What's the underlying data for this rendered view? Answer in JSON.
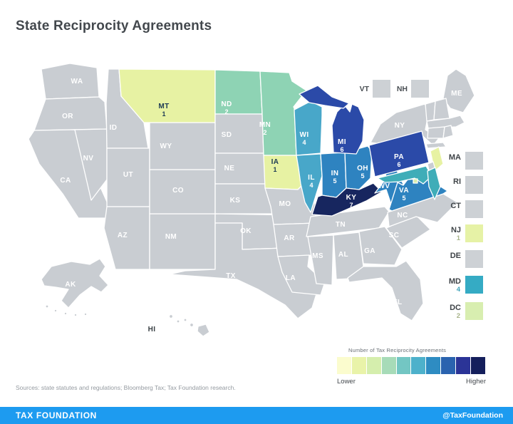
{
  "title": "State Reciprocity Agreements",
  "colors": {
    "gray_state": "#c9cdd2",
    "footer_bg": "#1d9bf0",
    "dark_label": "#1c3a54",
    "white_label": "#ffffff"
  },
  "map": {
    "states": [
      {
        "id": "WA",
        "label": "WA",
        "value": "",
        "fill": "#c9cdd2"
      },
      {
        "id": "OR",
        "label": "OR",
        "value": "",
        "fill": "#c9cdd2"
      },
      {
        "id": "CA",
        "label": "CA",
        "value": "",
        "fill": "#c9cdd2"
      },
      {
        "id": "NV",
        "label": "NV",
        "value": "",
        "fill": "#c9cdd2"
      },
      {
        "id": "ID",
        "label": "ID",
        "value": "",
        "fill": "#c9cdd2"
      },
      {
        "id": "UT",
        "label": "UT",
        "value": "",
        "fill": "#c9cdd2"
      },
      {
        "id": "AZ",
        "label": "AZ",
        "value": "",
        "fill": "#c9cdd2"
      },
      {
        "id": "NM",
        "label": "NM",
        "value": "",
        "fill": "#c9cdd2"
      },
      {
        "id": "CO",
        "label": "CO",
        "value": "",
        "fill": "#c9cdd2"
      },
      {
        "id": "WY",
        "label": "WY",
        "value": "",
        "fill": "#c9cdd2"
      },
      {
        "id": "MT",
        "label": "MT",
        "value": "1",
        "fill": "#e7f2a3",
        "label_color": "#1c3a54"
      },
      {
        "id": "ND",
        "label": "ND",
        "value": "2",
        "fill": "#8ed3b4"
      },
      {
        "id": "SD",
        "label": "SD",
        "value": "",
        "fill": "#c9cdd2"
      },
      {
        "id": "NE",
        "label": "NE",
        "value": "",
        "fill": "#c9cdd2"
      },
      {
        "id": "KS",
        "label": "KS",
        "value": "",
        "fill": "#c9cdd2"
      },
      {
        "id": "OK",
        "label": "OK",
        "value": "",
        "fill": "#c9cdd2"
      },
      {
        "id": "TX",
        "label": "TX",
        "value": "",
        "fill": "#c9cdd2"
      },
      {
        "id": "MN",
        "label": "MN",
        "value": "2",
        "fill": "#8ed3b4"
      },
      {
        "id": "IA",
        "label": "IA",
        "value": "1",
        "fill": "#e7f2a3",
        "label_color": "#1c3a54"
      },
      {
        "id": "MO",
        "label": "MO",
        "value": "",
        "fill": "#c9cdd2"
      },
      {
        "id": "AR",
        "label": "AR",
        "value": "",
        "fill": "#c9cdd2"
      },
      {
        "id": "LA",
        "label": "LA",
        "value": "",
        "fill": "#c9cdd2"
      },
      {
        "id": "WI",
        "label": "WI",
        "value": "4",
        "fill": "#48a7c9"
      },
      {
        "id": "IL",
        "label": "IL",
        "value": "4",
        "fill": "#48a7c9"
      },
      {
        "id": "IN",
        "label": "IN",
        "value": "5",
        "fill": "#2e83c0"
      },
      {
        "id": "OH",
        "label": "OH",
        "value": "5",
        "fill": "#2e83c0"
      },
      {
        "id": "MI",
        "label": "MI",
        "value": "6",
        "fill": "#2b4aa8"
      },
      {
        "id": "TN",
        "label": "TN",
        "value": "",
        "fill": "#c9cdd2"
      },
      {
        "id": "MS",
        "label": "MS",
        "value": "",
        "fill": "#c9cdd2"
      },
      {
        "id": "AL",
        "label": "AL",
        "value": "",
        "fill": "#c9cdd2"
      },
      {
        "id": "GA",
        "label": "GA",
        "value": "",
        "fill": "#c9cdd2"
      },
      {
        "id": "FL",
        "label": "FL",
        "value": "",
        "fill": "#c9cdd2"
      },
      {
        "id": "SC",
        "label": "SC",
        "value": "",
        "fill": "#c9cdd2"
      },
      {
        "id": "NC",
        "label": "NC",
        "value": "",
        "fill": "#c9cdd2"
      },
      {
        "id": "KY",
        "label": "KY",
        "value": "7",
        "fill": "#17265f"
      },
      {
        "id": "WV",
        "label": "WV",
        "value": "5",
        "fill": "#2e83c0"
      },
      {
        "id": "VA",
        "label": "VA",
        "value": "5",
        "fill": "#2e83c0"
      },
      {
        "id": "NY",
        "label": "NY",
        "value": "",
        "fill": "#c9cdd2"
      },
      {
        "id": "LI_M",
        "label": "",
        "value": "",
        "fill": "#c9cdd2"
      },
      {
        "id": "PA",
        "label": "PA",
        "value": "6",
        "fill": "#2b4aa8"
      },
      {
        "id": "ME",
        "label": "ME",
        "value": "",
        "fill": "#c9cdd2"
      },
      {
        "id": "VT_M",
        "label": "",
        "value": "",
        "fill": "#c9cdd2"
      },
      {
        "id": "NH_M",
        "label": "",
        "value": "",
        "fill": "#c9cdd2"
      },
      {
        "id": "MA_M",
        "label": "",
        "value": "",
        "fill": "#c9cdd2"
      },
      {
        "id": "CT_M",
        "label": "",
        "value": "",
        "fill": "#c9cdd2"
      },
      {
        "id": "RI_M",
        "label": "",
        "value": "",
        "fill": "#c9cdd2"
      },
      {
        "id": "NJ_M",
        "label": "",
        "value": "",
        "fill": "#e7f2a3"
      },
      {
        "id": "DE_M",
        "label": "",
        "value": "",
        "fill": "#c9cdd2"
      },
      {
        "id": "MD_M",
        "label": "",
        "value": "",
        "fill": "#3fadb8"
      },
      {
        "id": "DC_M",
        "label": "",
        "value": "",
        "fill": "#d7eeae"
      },
      {
        "id": "AK",
        "label": "AK",
        "value": "",
        "fill": "#c9cdd2"
      },
      {
        "id": "HI",
        "label": "HI",
        "value": "",
        "fill": "#c9cdd2",
        "label_color": "#3a4045"
      }
    ]
  },
  "callouts_top": [
    {
      "label": "VT",
      "square": "#cdd1d5"
    },
    {
      "label": "NH",
      "square": "#cdd1d5"
    }
  ],
  "callouts_right": [
    {
      "label": "MA",
      "value": "",
      "square": "#cdd1d5",
      "value_color": "#9aa0a6"
    },
    {
      "label": "RI",
      "value": "",
      "square": "#cdd1d5",
      "value_color": "#9aa0a6"
    },
    {
      "label": "CT",
      "value": "",
      "square": "#cdd1d5",
      "value_color": "#9aa0a6"
    },
    {
      "label": "NJ",
      "value": "1",
      "square": "#e6f2a6",
      "value_color": "#a8b48a"
    },
    {
      "label": "DE",
      "value": "",
      "square": "#cdd1d5",
      "value_color": "#9aa0a6"
    },
    {
      "label": "MD",
      "value": "4",
      "square": "#35abc4",
      "value_color": "#3fa3ba"
    },
    {
      "label": "DC",
      "value": "2",
      "square": "#d8eeb0",
      "value_color": "#a8b48a"
    }
  ],
  "legend": {
    "title": "Number of Tax Reciprocity Agreements",
    "lower_label": "Lower",
    "higher_label": "Higher",
    "colors": [
      "#fbfcce",
      "#e9f3a9",
      "#d5eead",
      "#a7dbb8",
      "#73c6c3",
      "#4db1cb",
      "#2e8cc2",
      "#2a63af",
      "#2b3497",
      "#151f5c"
    ]
  },
  "source_note": "Sources: state statutes and regulations; Bloomberg Tax; Tax Foundation research.",
  "footer": {
    "brand": "TAX FOUNDATION",
    "handle": "@TaxFoundation"
  },
  "chart_data": {
    "type": "choropleth",
    "title": "State Reciprocity Agreements",
    "value_label": "Number of Tax Reciprocity Agreements",
    "legend": {
      "low": "Lower",
      "high": "Higher"
    },
    "data": [
      {
        "state": "MT",
        "value": 1
      },
      {
        "state": "ND",
        "value": 2
      },
      {
        "state": "MN",
        "value": 2
      },
      {
        "state": "WI",
        "value": 4
      },
      {
        "state": "IA",
        "value": 1
      },
      {
        "state": "IL",
        "value": 4
      },
      {
        "state": "IN",
        "value": 5
      },
      {
        "state": "OH",
        "value": 5
      },
      {
        "state": "MI",
        "value": 6
      },
      {
        "state": "PA",
        "value": 6
      },
      {
        "state": "KY",
        "value": 7
      },
      {
        "state": "WV",
        "value": 5
      },
      {
        "state": "VA",
        "value": 5
      },
      {
        "state": "NJ",
        "value": 1
      },
      {
        "state": "MD",
        "value": 4
      },
      {
        "state": "DC",
        "value": 2
      }
    ],
    "states_without_agreements_color": "#c9cdd2"
  }
}
